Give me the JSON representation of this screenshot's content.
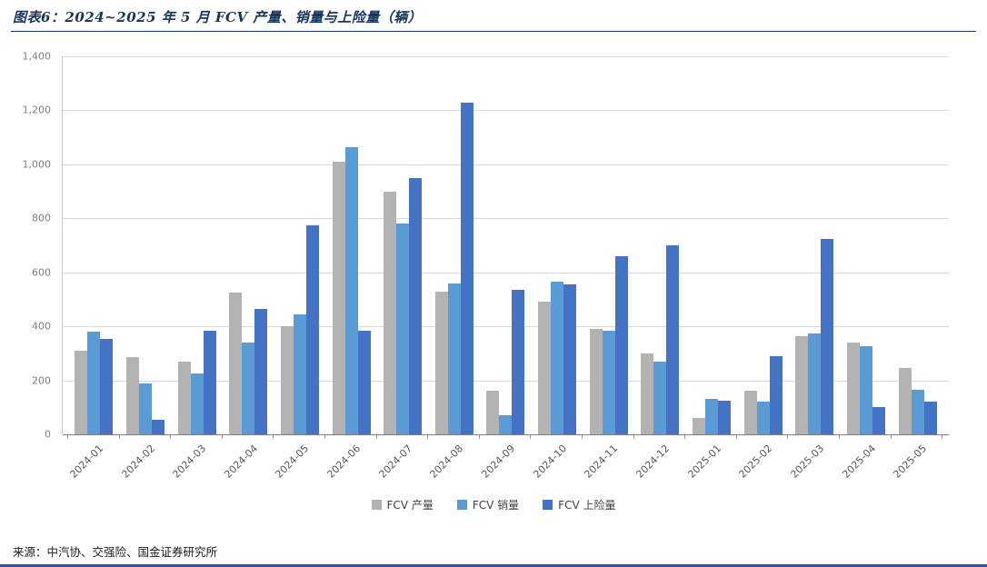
{
  "header": {
    "title": "图表6：2024~2025 年 5 月 FCV 产量、销量与上险量（辆）"
  },
  "footer": {
    "source": "来源：中汽协、交强险、国金证券研究所"
  },
  "colors": {
    "title_navy": "#17365d",
    "bottom_border_blue": "#2f5597",
    "gridline_gray": "#d9d9d9",
    "axis_gray": "#7f7f7f",
    "tick_label_gray": "#808080"
  },
  "chart_data": {
    "type": "bar",
    "title": "图表6：2024~2025 年 5 月 FCV 产量、销量与上险量（辆）",
    "categories": [
      "2024-01",
      "2024-02",
      "2024-03",
      "2024-04",
      "2024-05",
      "2024-06",
      "2024-07",
      "2024-08",
      "2024-09",
      "2024-10",
      "2024-11",
      "2024-12",
      "2025-01",
      "2025-02",
      "2025-03",
      "2025-04",
      "2025-05"
    ],
    "series": [
      {
        "name": "FCV 产量",
        "color": "#b3b3b3",
        "values": [
          310,
          285,
          270,
          525,
          400,
          1010,
          900,
          530,
          160,
          490,
          390,
          300,
          60,
          160,
          365,
          340,
          245
        ]
      },
      {
        "name": "FCV 销量",
        "color": "#5b9bd5",
        "values": [
          380,
          190,
          225,
          340,
          445,
          1065,
          780,
          560,
          70,
          565,
          385,
          270,
          130,
          120,
          375,
          325,
          165
        ]
      },
      {
        "name": "FCV 上险量",
        "color": "#4472c4",
        "values": [
          355,
          55,
          385,
          465,
          775,
          385,
          950,
          1230,
          535,
          555,
          660,
          700,
          125,
          290,
          725,
          100,
          120
        ]
      }
    ],
    "xlabel": "",
    "ylabel": "",
    "ylim": [
      0,
      1400
    ],
    "ytick_step": 200,
    "grid": true,
    "legend_position": "bottom"
  }
}
